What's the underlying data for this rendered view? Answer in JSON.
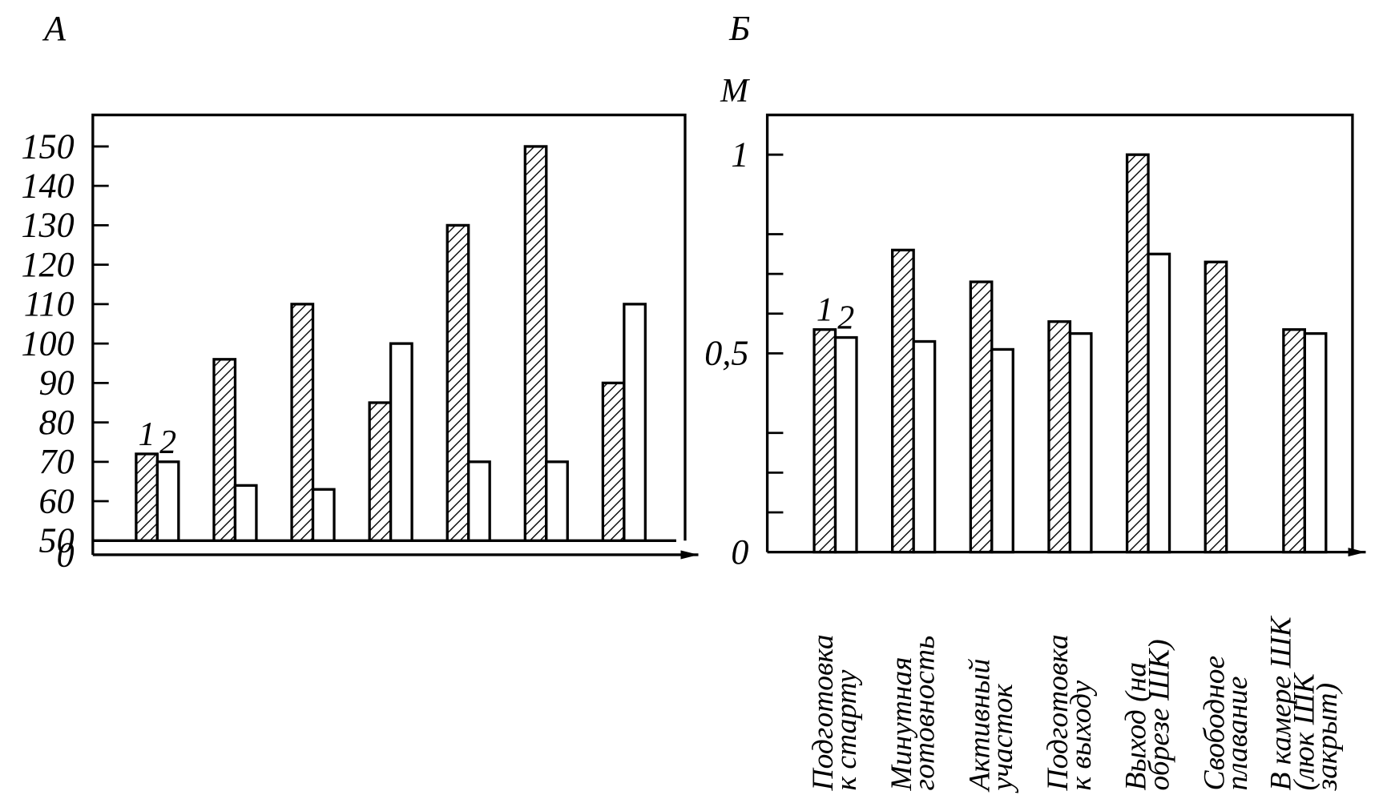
{
  "chart_data": [
    {
      "type": "bar",
      "title": "А",
      "categories": [
        null,
        null,
        null,
        null,
        null,
        null,
        null
      ],
      "series": [
        {
          "name": "1",
          "color": "#000",
          "hatch": true,
          "values": [
            72,
            96,
            110,
            85,
            130,
            150,
            90
          ]
        },
        {
          "name": "2",
          "color": "#000",
          "hatch": false,
          "values": [
            70,
            64,
            63,
            100,
            70,
            70,
            110
          ]
        }
      ],
      "ylim": [
        0,
        158
      ],
      "yticks": [
        0,
        50,
        60,
        70,
        80,
        90,
        100,
        110,
        120,
        130,
        140,
        150
      ],
      "axis_break": true
    },
    {
      "type": "bar",
      "title": "Б",
      "ylabel": "М",
      "categories": [
        [
          "Подготовка",
          "к старту"
        ],
        [
          "Минутная",
          "готовность"
        ],
        [
          "Активный",
          "участок"
        ],
        [
          "Подготовка",
          "к выходу"
        ],
        [
          "Выход (на",
          "обрезе ШК)"
        ],
        [
          "Свободное",
          "плавание"
        ],
        [
          "В камере ШК",
          "(люк ШК",
          "закрыт)"
        ]
      ],
      "series": [
        {
          "name": "1",
          "color": "#000",
          "hatch": true,
          "values": [
            0.56,
            0.76,
            0.68,
            0.58,
            1.0,
            0.73,
            0.56
          ]
        },
        {
          "name": "2",
          "color": "#000",
          "hatch": false,
          "values": [
            0.54,
            0.53,
            0.51,
            0.55,
            0.75,
            null,
            0.55
          ]
        }
      ],
      "ylim": [
        0,
        1.1
      ],
      "yticks": [
        0,
        {
          "value": 0.5,
          "label": "0,5"
        },
        1
      ],
      "yminor_ticks": [
        0.1,
        0.2,
        0.3,
        0.6,
        0.7,
        0.8
      ]
    }
  ]
}
